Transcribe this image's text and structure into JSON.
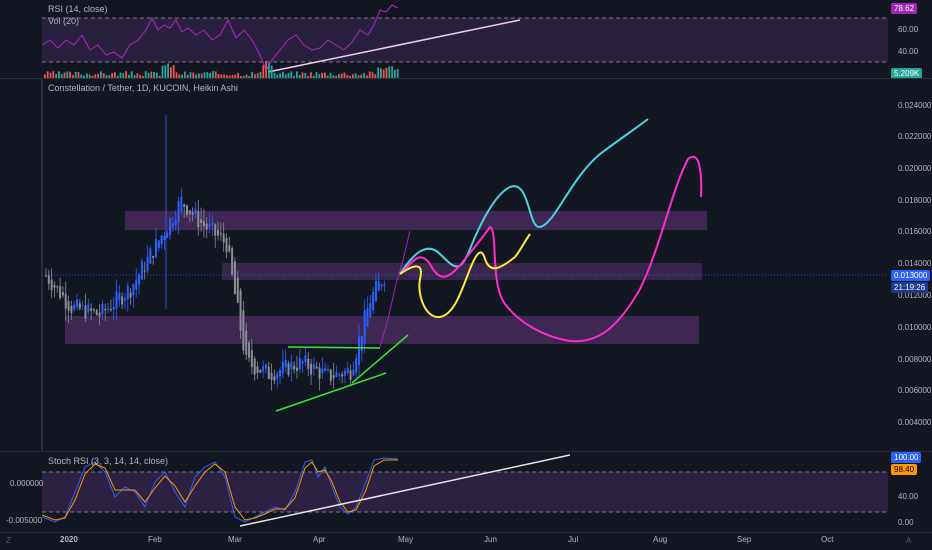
{
  "rsi_pane": {
    "title": "RSI (14, close)",
    "vol_title": "Vol (20)",
    "ticks": [
      "60.00",
      "40.00"
    ],
    "rsi_tag": "78.62",
    "vol_tag": "5.209K",
    "colors": {
      "rsi_tag": "#9c27b0",
      "vol_tag": "#26a69a"
    }
  },
  "main_pane": {
    "title": "Constellation / Tether, 1D, KUCOIN, Heikin Ashi",
    "ticks": [
      "0.024000",
      "0.022000",
      "0.020000",
      "0.018000",
      "0.016000",
      "0.014000",
      "0.012000",
      "0.010000",
      "0.008000",
      "0.006000",
      "0.004000"
    ],
    "price_tag": "0.013000",
    "countdown_tag": "21:19:26",
    "colors": {
      "price_tag": "#2962ff"
    }
  },
  "stoch_pane": {
    "title": "Stoch RSI (3, 3, 14, 14, close)",
    "ticks_right": [
      "40.00",
      "0.00"
    ],
    "ticks_left": [
      "0.000000",
      "-0.005000"
    ],
    "k_tag": "100.00",
    "d_tag": "98.40",
    "colors": {
      "k_tag": "#2962ff",
      "d_tag": "#ff9800"
    }
  },
  "time_axis": {
    "months": [
      "2020",
      "Feb",
      "Mar",
      "Apr",
      "May",
      "Jun",
      "Jul",
      "Aug",
      "Sep",
      "Oct"
    ],
    "left_corner": "Z",
    "right_corner": "A"
  },
  "chart_data": {
    "type": "candlestick",
    "symbol": "Constellation / Tether",
    "timeframe": "1D",
    "exchange": "KUCOIN",
    "style": "Heikin Ashi",
    "last_price": 0.013,
    "y_range": [
      0.003,
      0.025
    ],
    "price_series_approx": [
      {
        "date": "2020-01-01",
        "close": 0.013
      },
      {
        "date": "2020-01-10",
        "close": 0.011
      },
      {
        "date": "2020-01-20",
        "close": 0.0105
      },
      {
        "date": "2020-01-31",
        "close": 0.0122
      },
      {
        "date": "2020-02-10",
        "close": 0.0152
      },
      {
        "date": "2020-02-18",
        "close": 0.0177
      },
      {
        "date": "2020-02-25",
        "close": 0.0163
      },
      {
        "date": "2020-03-05",
        "close": 0.015
      },
      {
        "date": "2020-03-12",
        "close": 0.0075
      },
      {
        "date": "2020-03-20",
        "close": 0.0068
      },
      {
        "date": "2020-04-01",
        "close": 0.0075
      },
      {
        "date": "2020-04-10",
        "close": 0.0066
      },
      {
        "date": "2020-04-18",
        "close": 0.007
      },
      {
        "date": "2020-04-25",
        "close": 0.0115
      },
      {
        "date": "2020-04-30",
        "close": 0.013
      }
    ],
    "zones": [
      {
        "from": 0.016,
        "to": 0.0171
      },
      {
        "from": 0.0127,
        "to": 0.0138
      },
      {
        "from": 0.0088,
        "to": 0.0104
      }
    ],
    "rsi": {
      "last": 78.62,
      "bands": [
        70,
        30
      ]
    },
    "stoch_rsi": {
      "k": 100.0,
      "d": 98.4,
      "bands": [
        80,
        20
      ]
    }
  }
}
